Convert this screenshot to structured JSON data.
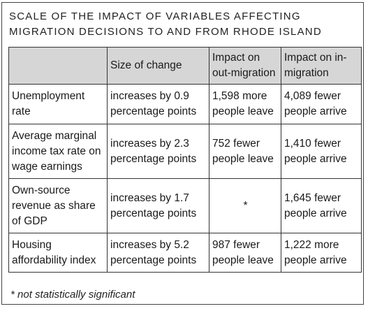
{
  "title": {
    "line1": "SCALE OF THE IMPACT OF VARIABLES AFFECTING",
    "line2": "MIGRATION DECISIONS TO AND FROM RHODE ISLAND"
  },
  "table": {
    "headers": {
      "variable": "",
      "size": "Size of change",
      "out": "Impact on out-migration",
      "in": "Impact on in-migration"
    },
    "rows": [
      {
        "variable": "Unemployment rate",
        "size": "increases by 0.9 percentage points",
        "out": "1,598 more people leave",
        "in": "4,089 fewer people arrive"
      },
      {
        "variable": "Average marginal income tax rate on wage earnings",
        "size": "increases by 2.3 percentage points",
        "out": "752 fewer people leave",
        "in": "1,410 fewer people arrive"
      },
      {
        "variable": "Own-source revenue as share of GDP",
        "size": "increases by 1.7 percentage points",
        "out": "*",
        "in": "1,645 fewer people arrive"
      },
      {
        "variable": "Housing affordability index",
        "size": "increases by 5.2 percentage points",
        "out": "987 fewer people leave",
        "in": "1,222 more people arrive"
      }
    ]
  },
  "footnote": "* not statistically significant"
}
